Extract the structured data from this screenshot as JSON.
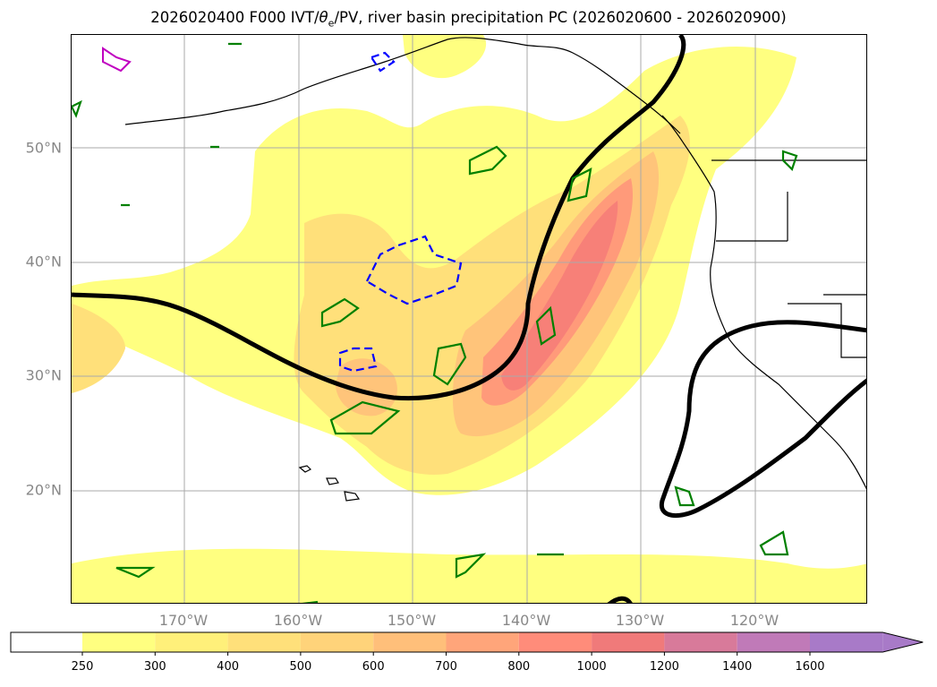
{
  "title": {
    "prefix": "2026020400 F000 IVT/",
    "theta": "θ",
    "sub": "e",
    "suffix": "/PV, river basin precipitation PC (2026020600 - 2026020900)"
  },
  "axes": {
    "lat_labels": [
      "50°N",
      "40°N",
      "30°N",
      "20°N"
    ],
    "lon_labels": [
      "170°W",
      "160°W",
      "150°W",
      "140°W",
      "130°W",
      "120°W"
    ]
  },
  "colorbar": {
    "ticks": [
      "250",
      "300",
      "400",
      "500",
      "600",
      "700",
      "800",
      "1000",
      "1200",
      "1400",
      "1600"
    ],
    "colors": [
      "#ffffff",
      "#ffff80",
      "#fff07a",
      "#ffe07a",
      "#ffd37a",
      "#ffbf7a",
      "#ffa57a",
      "#ff8c7a",
      "#f07a7a",
      "#d87a9a",
      "#c07ab8",
      "#a87ac8"
    ],
    "extend": "max"
  },
  "map_colors": {
    "ivt_250": "#ffff80",
    "ivt_400": "#ffe07a",
    "ivt_600": "#ffc47a",
    "ivt_800": "#ff9a7a",
    "ivt_1000": "#f78078",
    "pv_contour": "#000000",
    "theta_e_positive": "#008000",
    "theta_e_negative": "#0000ff",
    "precip_contour": "#c000c0",
    "coastline": "#000000",
    "gridline": "#aaaaaa"
  }
}
